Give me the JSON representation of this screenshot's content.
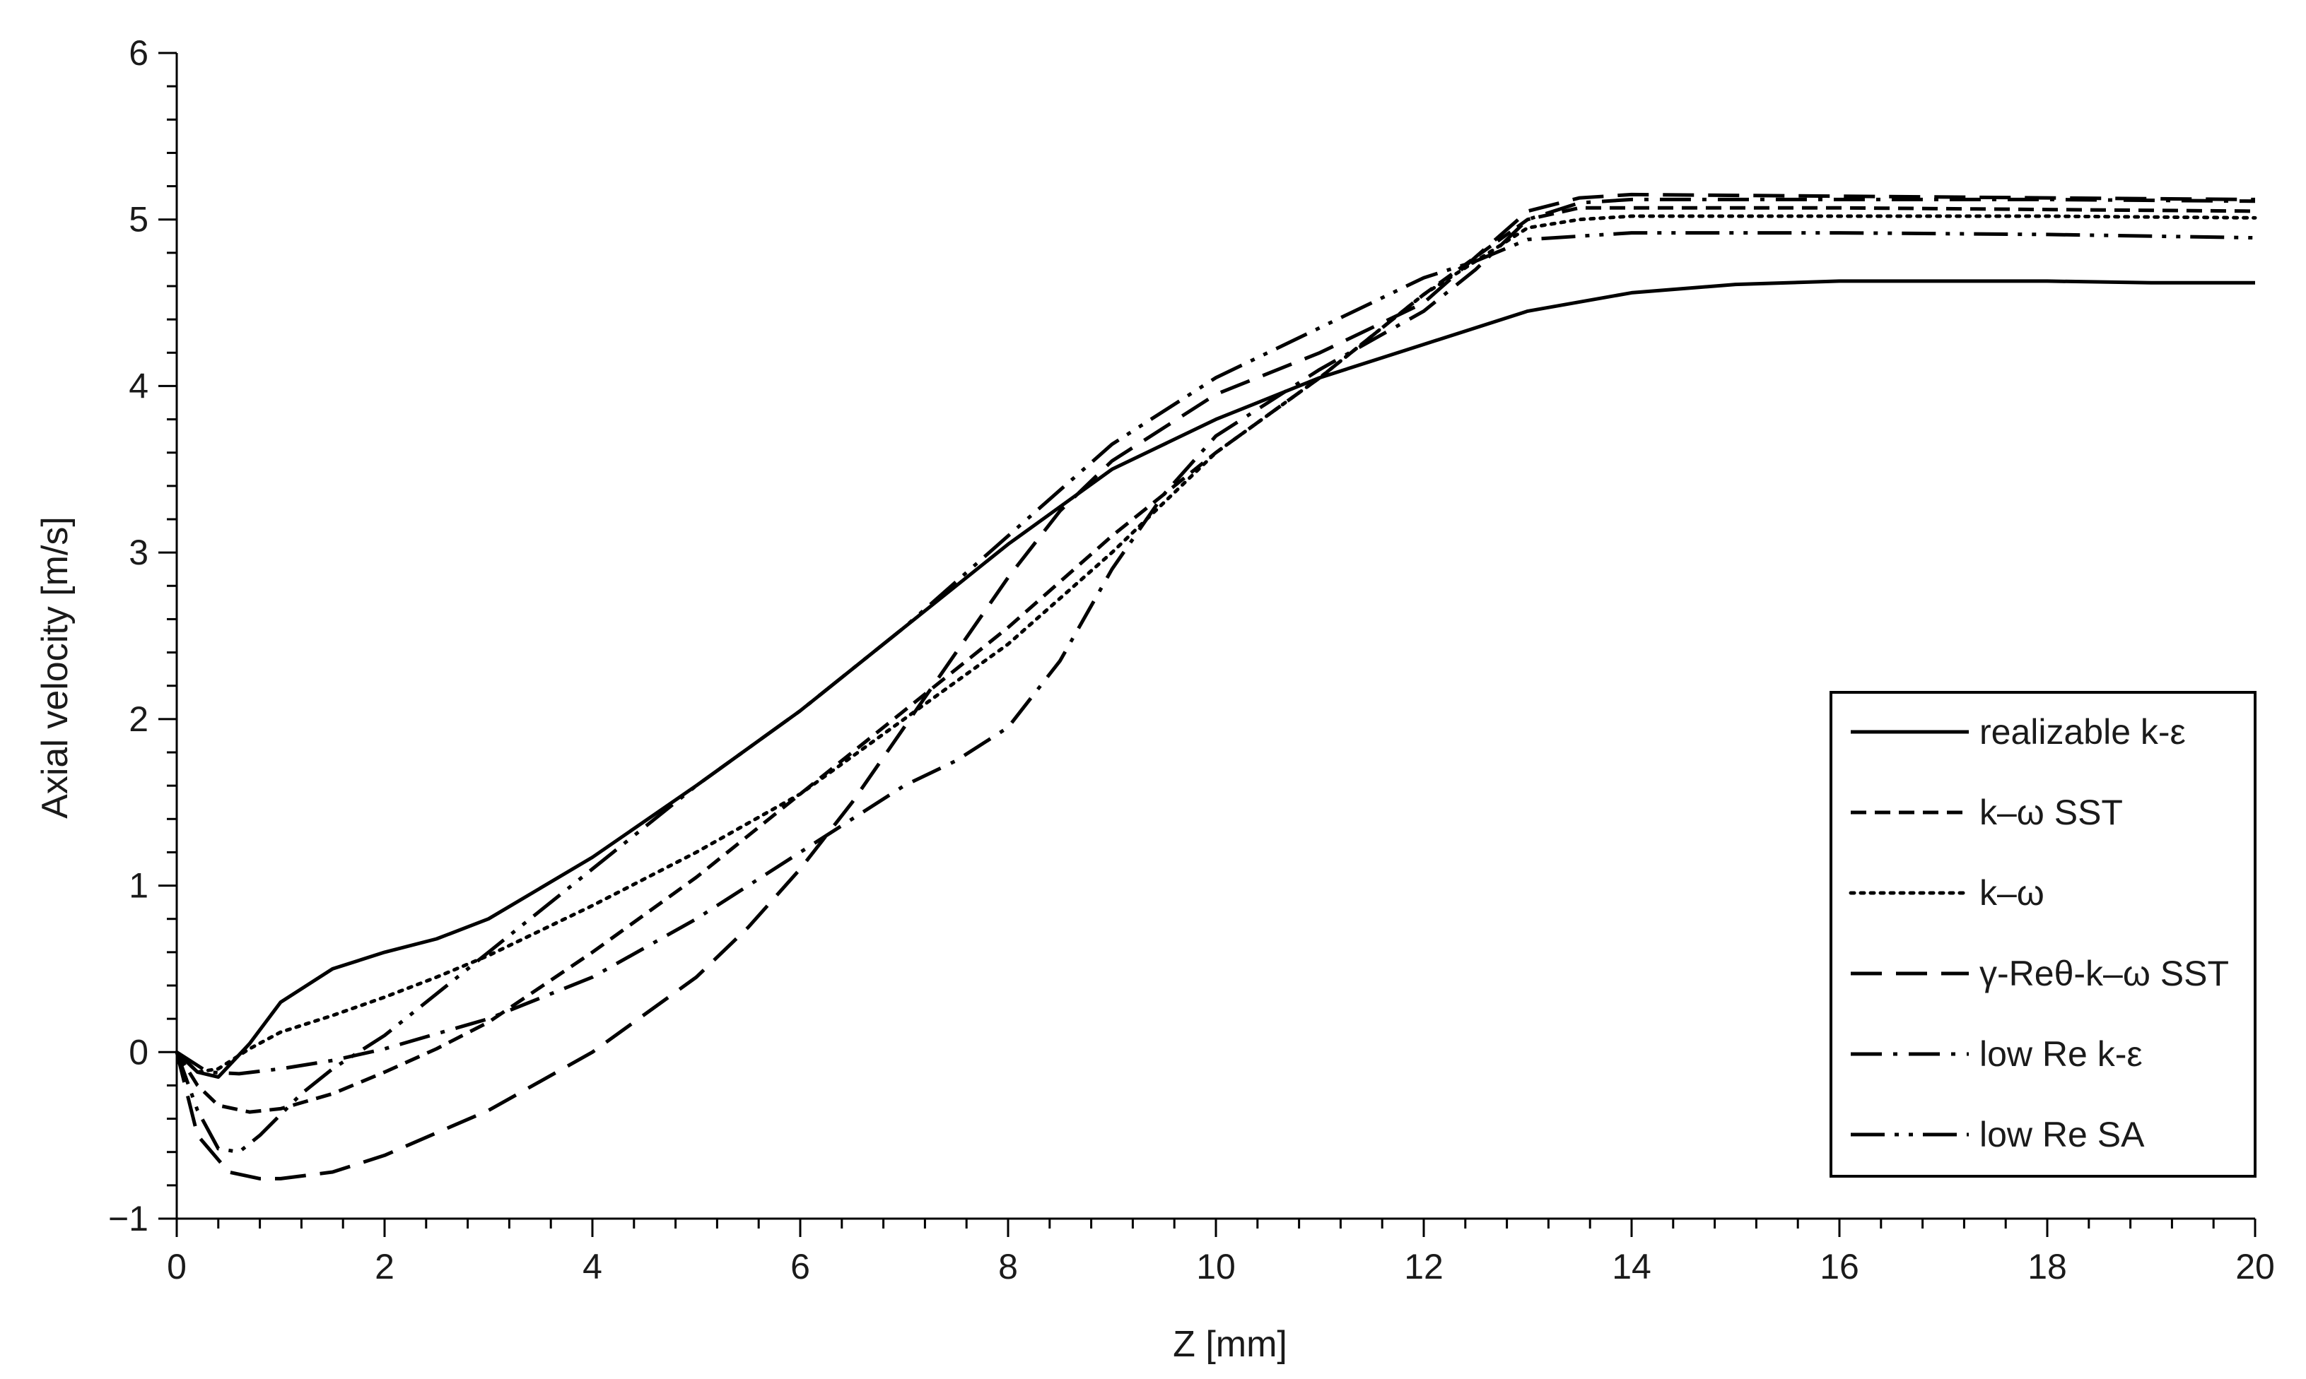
{
  "chart_data": {
    "type": "line",
    "title": "",
    "xlabel": "Z [mm]",
    "ylabel": "Axial velocity [m/s]",
    "xlim": [
      0,
      20
    ],
    "ylim": [
      -1,
      6
    ],
    "x_ticks": [
      "0",
      "2",
      "4",
      "6",
      "8",
      "10",
      "12",
      "14",
      "16",
      "18",
      "20"
    ],
    "y_ticks": [
      "−1",
      "0",
      "1",
      "2",
      "3",
      "4",
      "5",
      "6"
    ],
    "grid": false,
    "legend_position": "right",
    "series": [
      {
        "name": "realizable k-ε",
        "style": "solid",
        "x": [
          0,
          0.2,
          0.4,
          0.7,
          1,
          1.5,
          2,
          2.5,
          3,
          4,
          5,
          6,
          7,
          8,
          9,
          10,
          11,
          12,
          13,
          14,
          15,
          16,
          17,
          18,
          19,
          20
        ],
        "y": [
          0,
          -0.12,
          -0.15,
          0.05,
          0.3,
          0.5,
          0.6,
          0.68,
          0.8,
          1.17,
          1.6,
          2.05,
          2.55,
          3.05,
          3.5,
          3.8,
          4.05,
          4.25,
          4.45,
          4.56,
          4.61,
          4.63,
          4.63,
          4.63,
          4.62,
          4.62
        ]
      },
      {
        "name": "k–ω SST",
        "style": "dashed-short",
        "x": [
          0,
          0.2,
          0.4,
          0.7,
          1,
          1.5,
          2,
          2.5,
          3,
          4,
          5,
          6,
          7,
          8,
          9,
          10,
          11,
          12,
          13,
          13.5,
          14,
          16,
          18,
          20
        ],
        "y": [
          0,
          -0.2,
          -0.32,
          -0.36,
          -0.34,
          -0.25,
          -0.12,
          0.02,
          0.18,
          0.6,
          1.05,
          1.55,
          2.05,
          2.55,
          3.1,
          3.6,
          4.05,
          4.55,
          5.0,
          5.07,
          5.07,
          5.07,
          5.06,
          5.05
        ]
      },
      {
        "name": "k–ω",
        "style": "dotted",
        "x": [
          0,
          0.2,
          0.4,
          0.7,
          1,
          1.5,
          2,
          2.5,
          3,
          4,
          5,
          6,
          7,
          8,
          9,
          10,
          11,
          12,
          13,
          13.5,
          14,
          16,
          18,
          20
        ],
        "y": [
          0,
          -0.12,
          -0.1,
          0.02,
          0.12,
          0.22,
          0.33,
          0.45,
          0.58,
          0.88,
          1.2,
          1.55,
          2.0,
          2.45,
          3.0,
          3.6,
          4.05,
          4.55,
          4.95,
          5.0,
          5.02,
          5.02,
          5.02,
          5.01
        ]
      },
      {
        "name": "γ-Reθ-k–ω SST",
        "style": "dashed-long",
        "x": [
          0,
          0.2,
          0.5,
          0.8,
          1,
          1.5,
          2,
          3,
          4,
          5,
          5.5,
          6,
          6.5,
          7,
          7.5,
          8,
          8.5,
          9,
          10,
          11,
          12,
          13,
          13.5,
          14,
          16,
          18,
          20
        ],
        "y": [
          0,
          -0.5,
          -0.72,
          -0.76,
          -0.76,
          -0.72,
          -0.62,
          -0.35,
          0.0,
          0.45,
          0.75,
          1.1,
          1.5,
          1.95,
          2.4,
          2.85,
          3.25,
          3.55,
          3.95,
          4.2,
          4.5,
          5.05,
          5.13,
          5.15,
          5.14,
          5.13,
          5.12
        ]
      },
      {
        "name": "low Re k-ε",
        "style": "dash-dot",
        "x": [
          0,
          0.3,
          0.6,
          1,
          1.5,
          2,
          3,
          4,
          5,
          6,
          7,
          7.5,
          8,
          8.5,
          9,
          9.5,
          10,
          11,
          12,
          12.5,
          13,
          13.5,
          14,
          16,
          18,
          20
        ],
        "y": [
          0,
          -0.12,
          -0.13,
          -0.1,
          -0.05,
          0.02,
          0.2,
          0.45,
          0.8,
          1.2,
          1.6,
          1.75,
          1.95,
          2.35,
          2.9,
          3.35,
          3.7,
          4.1,
          4.45,
          4.7,
          5.0,
          5.1,
          5.12,
          5.12,
          5.12,
          5.11
        ]
      },
      {
        "name": "low Re SA",
        "style": "dash-dot-dot",
        "x": [
          0,
          0.2,
          0.4,
          0.6,
          0.8,
          1.2,
          1.5,
          2,
          3,
          4,
          5,
          6,
          7,
          8,
          9,
          10,
          11,
          12,
          12.5,
          13,
          14,
          16,
          18,
          20
        ],
        "y": [
          0,
          -0.35,
          -0.58,
          -0.6,
          -0.5,
          -0.25,
          -0.1,
          0.1,
          0.6,
          1.1,
          1.6,
          2.05,
          2.55,
          3.1,
          3.65,
          4.05,
          4.35,
          4.65,
          4.75,
          4.88,
          4.92,
          4.92,
          4.91,
          4.89
        ]
      }
    ]
  }
}
